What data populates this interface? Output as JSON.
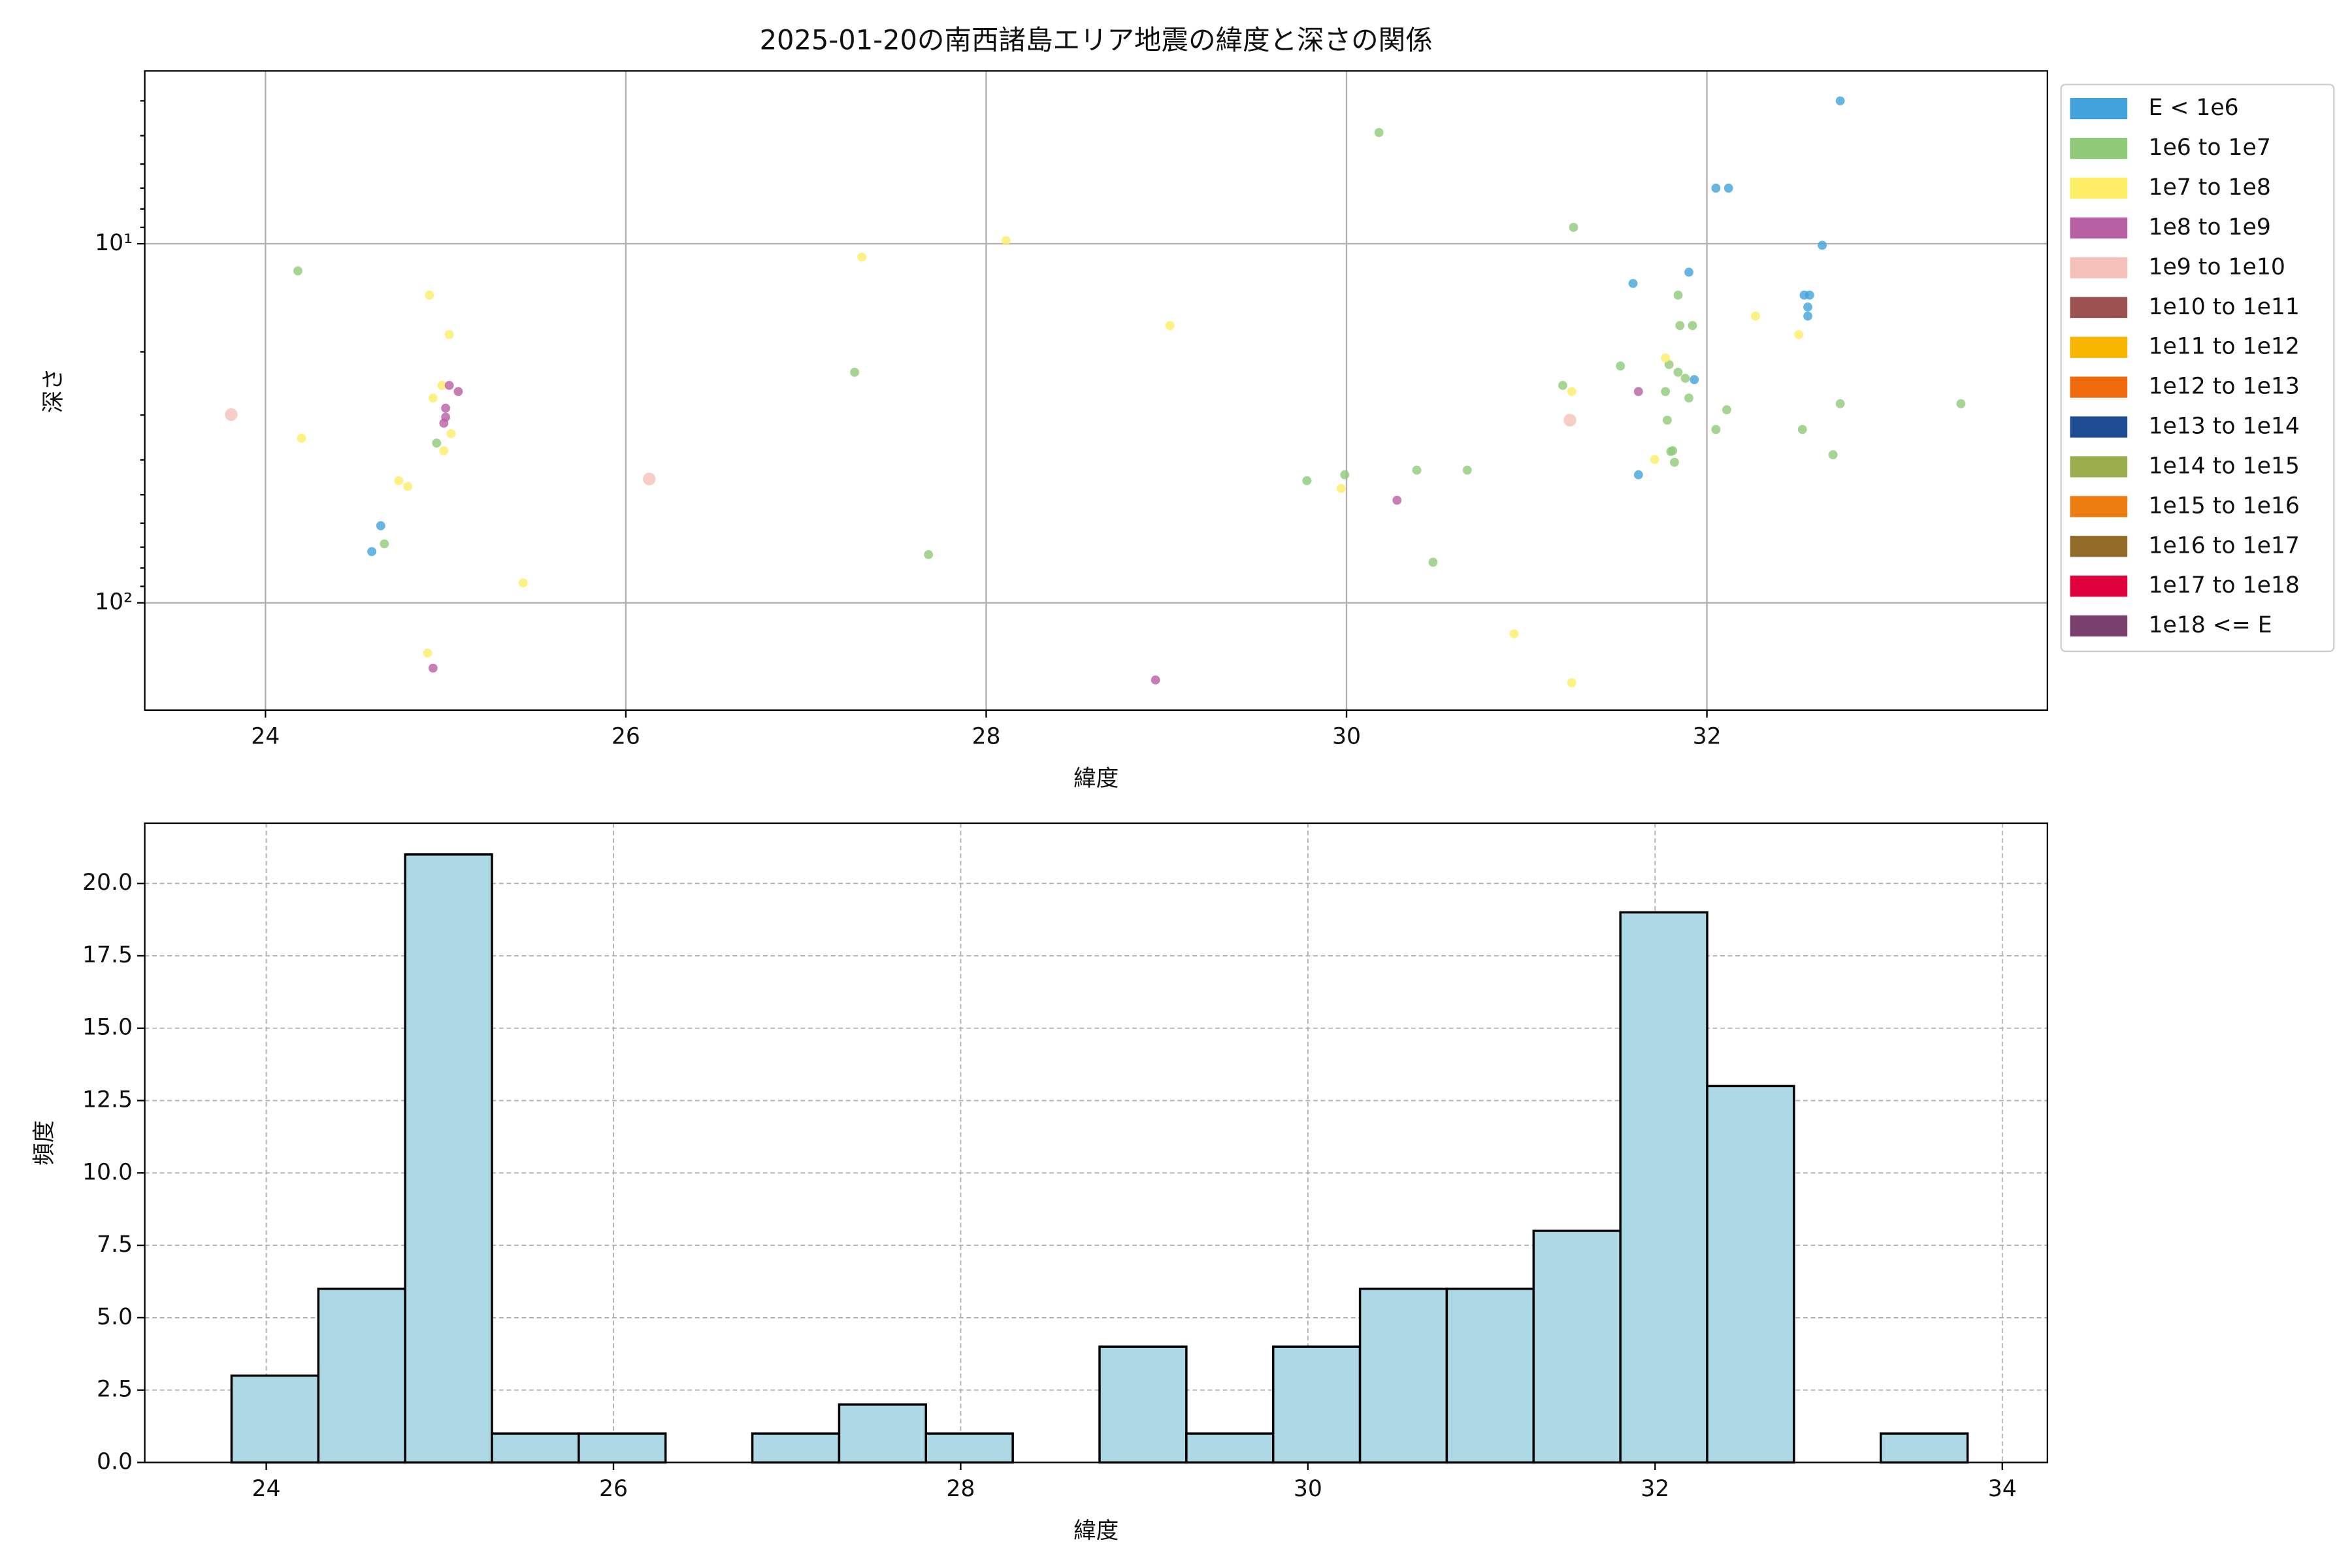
{
  "chart_data": [
    {
      "type": "scatter",
      "title": "2025-01-20の南西諸島エリア地震の緯度と深さの関係",
      "xlabel": "緯度",
      "ylabel": "深さ",
      "xlim": [
        23.33,
        33.89
      ],
      "xticks": [
        24,
        26,
        28,
        30,
        32
      ],
      "ylim": [
        3.3,
        199
      ],
      "yscale": "log",
      "y_inverted": true,
      "yticks": [
        {
          "value": 10,
          "label": "10¹"
        },
        {
          "value": 100,
          "label": "10²"
        }
      ],
      "yminorticks": [
        4,
        5,
        6,
        7,
        8,
        9,
        20,
        30,
        40,
        50,
        60,
        70,
        80,
        90
      ],
      "grid": true,
      "legend": "outside right",
      "series": [
        {
          "name": "E < 1e6",
          "color": "#41a2dc",
          "x": [
            32.74,
            32.05,
            32.12,
            32.64,
            31.59,
            31.9,
            32.54,
            32.57,
            32.56,
            32.56,
            31.93,
            31.62,
            24.64,
            24.59
          ],
          "values": [
            4.0,
            7.0,
            7.0,
            10.1,
            12.9,
            12.0,
            13.9,
            13.9,
            15.0,
            15.9,
            23.9,
            44,
            61,
            72
          ]
        },
        {
          "name": "1e6 to 1e7",
          "color": "#90c978",
          "x": [
            30.18,
            31.26,
            24.18,
            31.84,
            31.85,
            31.92,
            27.27,
            31.52,
            31.79,
            31.84,
            31.88,
            31.2,
            31.77,
            31.9,
            33.41,
            32.74,
            32.11,
            31.78,
            32.05,
            32.53,
            24.95,
            31.81,
            31.8,
            31.82,
            32.7,
            30.39,
            30.67,
            29.99,
            29.78,
            24.66,
            27.68,
            30.48
          ],
          "values": [
            4.9,
            9.0,
            11.9,
            13.9,
            16.9,
            16.9,
            22.8,
            21.9,
            21.7,
            22.8,
            23.7,
            24.8,
            25.8,
            26.9,
            27.9,
            27.9,
            29.0,
            31.0,
            32.9,
            32.9,
            35.9,
            37.7,
            37.9,
            40.6,
            38.7,
            42.7,
            42.7,
            44,
            45.7,
            68.5,
            73.4,
            77.1
          ]
        },
        {
          "name": "1e7 to 1e8",
          "color": "#fdee65",
          "x": [
            28.11,
            27.31,
            32.27,
            24.91,
            25.02,
            29.02,
            32.51,
            31.77,
            24.98,
            24.93,
            31.25,
            24.2,
            25.03,
            24.99,
            31.71,
            24.74,
            24.79,
            29.97,
            25.43,
            30.93,
            24.9,
            31.25
          ],
          "values": [
            9.8,
            10.9,
            15.9,
            13.9,
            17.9,
            16.9,
            17.9,
            20.8,
            24.8,
            26.9,
            25.8,
            34.8,
            33.8,
            37.7,
            39.9,
            45.7,
            47.4,
            48,
            88,
            122,
            138,
            167
          ]
        },
        {
          "name": "1e8 to 1e9",
          "color": "#b65fa2",
          "x": [
            25.02,
            25.07,
            31.62,
            25.0,
            25.0,
            24.99,
            30.28,
            24.93,
            28.94
          ],
          "values": [
            24.8,
            25.8,
            25.8,
            28.7,
            30.4,
            31.6,
            51.8,
            152,
            164
          ]
        },
        {
          "name": "1e9 to 1e10",
          "color": "#f5c1ba",
          "x": [
            23.81,
            31.24,
            26.13
          ],
          "values": [
            29.9,
            31.0,
            45.2
          ]
        },
        {
          "name": "1e10 to 1e11",
          "color": "#9c5250",
          "x": [],
          "values": []
        },
        {
          "name": "1e11 to 1e12",
          "color": "#f8b500",
          "x": [],
          "values": []
        },
        {
          "name": "1e12 to 1e13",
          "color": "#ee6a0c",
          "x": [],
          "values": []
        },
        {
          "name": "1e13 to 1e14",
          "color": "#1e4c95",
          "x": [],
          "values": []
        },
        {
          "name": "1e14 to 1e15",
          "color": "#9aae4d",
          "x": [],
          "values": []
        },
        {
          "name": "1e15 to 1e16",
          "color": "#ee7d11",
          "x": [],
          "values": []
        },
        {
          "name": "1e16 to 1e17",
          "color": "#946c2a",
          "x": [],
          "values": []
        },
        {
          "name": "1e17 to 1e18",
          "color": "#e0003c",
          "x": [],
          "values": []
        },
        {
          "name": "1e18 <= E",
          "color": "#7a3f6d",
          "x": [],
          "values": []
        }
      ]
    },
    {
      "type": "histogram",
      "xlabel": "緯度",
      "ylabel": "頻度",
      "xlim": [
        23.3,
        34.26
      ],
      "xticks": [
        24,
        26,
        28,
        30,
        32,
        34
      ],
      "ylim": [
        0,
        22.08
      ],
      "yticks": [
        {
          "value": 0,
          "label": "0.0"
        },
        2.5,
        {
          "value": 5,
          "label": "5.0"
        },
        7.5,
        {
          "value": 10,
          "label": "10.0"
        },
        12.5,
        {
          "value": 15,
          "label": "15.0"
        },
        17.5,
        {
          "value": 20,
          "label": "20.0"
        }
      ],
      "grid": "dashed",
      "color": "#add8e6",
      "edgecolor": "#000000",
      "bins": [
        23.8,
        24.3,
        24.8,
        25.3,
        25.8,
        26.3,
        26.8,
        27.3,
        27.8,
        28.3,
        28.8,
        29.3,
        29.8,
        30.3,
        30.8,
        31.3,
        31.8,
        32.3,
        32.8,
        33.3,
        33.8
      ],
      "values": [
        3,
        6,
        21,
        1,
        1,
        0,
        1,
        2,
        1,
        0,
        4,
        1,
        4,
        6,
        6,
        8,
        19,
        13,
        0,
        1
      ]
    }
  ]
}
